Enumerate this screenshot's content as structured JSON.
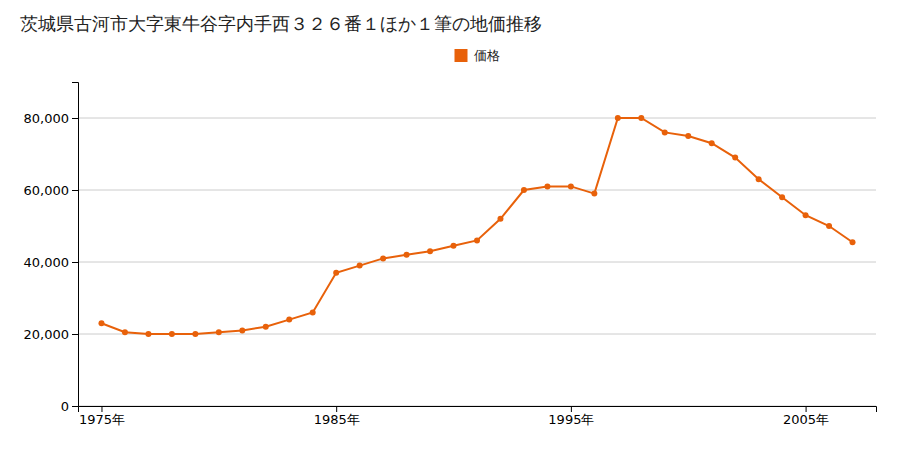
{
  "chart_data": {
    "type": "line",
    "title": "茨城県古河市大字東牛谷字内手西３２６番１ほか１筆の地価推移",
    "x": [
      1975,
      1976,
      1977,
      1978,
      1979,
      1980,
      1981,
      1982,
      1983,
      1984,
      1985,
      1986,
      1987,
      1988,
      1989,
      1990,
      1991,
      1992,
      1993,
      1994,
      1995,
      1996,
      1997,
      1998,
      1999,
      2000,
      2001,
      2002,
      2003,
      2004,
      2005,
      2006,
      2007
    ],
    "series": [
      {
        "name": "価格",
        "color": "#e8610a",
        "marker": "circle",
        "values": [
          23000,
          20500,
          20000,
          20000,
          20000,
          20500,
          21000,
          22000,
          24000,
          26000,
          37000,
          39000,
          41000,
          42000,
          43000,
          44500,
          46000,
          52000,
          60000,
          61000,
          61000,
          59000,
          80000,
          80000,
          76000,
          75000,
          73000,
          69000,
          63000,
          58000,
          53000,
          50000,
          45500
        ]
      }
    ],
    "xlim": [
      1974,
      2008
    ],
    "ylim": [
      0,
      90000
    ],
    "xticks": [
      {
        "value": 1975,
        "label": "1975年"
      },
      {
        "value": 1985,
        "label": "1985年"
      },
      {
        "value": 1995,
        "label": "1995年"
      },
      {
        "value": 2005,
        "label": "2005年"
      }
    ],
    "yticks": [
      0,
      {
        "value": 20000,
        "label": "20,000"
      },
      {
        "value": 40000,
        "label": "40,000"
      },
      {
        "value": 60000,
        "label": "60,000"
      },
      {
        "value": 80000,
        "label": "80,000"
      }
    ],
    "grid": true,
    "legend": "top"
  }
}
